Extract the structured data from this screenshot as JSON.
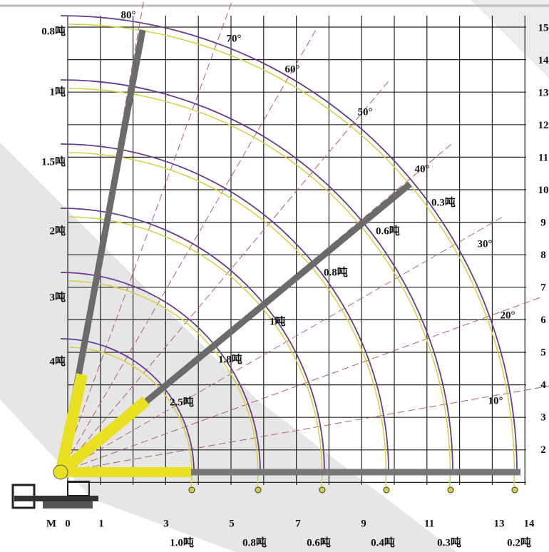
{
  "load_labels_left": [
    "0.8吨",
    "1吨",
    "1.5吨",
    "2吨",
    "3吨",
    "4吨"
  ],
  "height_labels": [
    "15",
    "14",
    "13",
    "12",
    "11",
    "10",
    "9",
    "8",
    "7",
    "6",
    "5",
    "4",
    "3",
    "2"
  ],
  "radius_labels": [
    "M",
    "0",
    "1",
    "3",
    "5",
    "7",
    "9",
    "11",
    "13",
    "14"
  ],
  "load_labels_bottom": [
    "1.0吨",
    "0.8吨",
    "0.6吨",
    "0.4吨",
    "0.3吨",
    "0.2吨"
  ],
  "angle_labels": [
    "80°",
    "70°",
    "60°",
    "50°",
    "40°",
    "30°",
    "20°",
    "10°"
  ],
  "boom_load_labels": [
    "0.3吨",
    "0.6吨",
    "0.8吨",
    "1吨",
    "1.8吨",
    "2.5吨"
  ]
}
